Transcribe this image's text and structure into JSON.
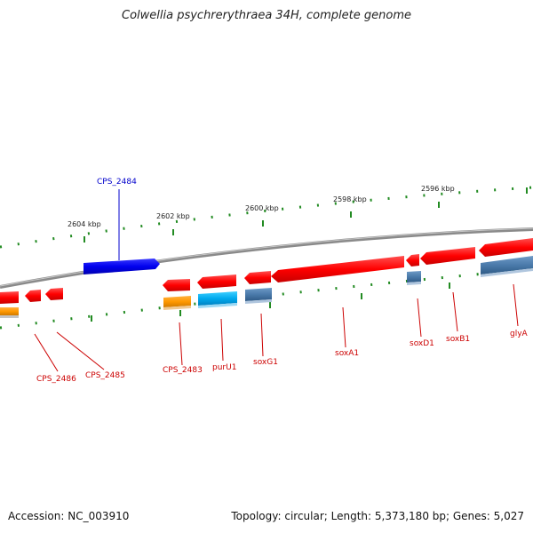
{
  "title": "Colwellia psychrerythraea 34H, complete genome",
  "footer": {
    "accession": "Accession: NC_003910",
    "summary": "Topology: circular; Length: 5,373,180 bp; Genes: 5,027"
  },
  "colors": {
    "backbone": "#8a8a8a",
    "forward_gene": "#ff0000",
    "reverse_gene": "#ff0000",
    "blue_gene": "#0000ee",
    "steelblue_gene": "#4a7aaa",
    "orange_gene": "#ff9900",
    "cyan_gene": "#00aaee",
    "label_red": "#cc0000",
    "label_blue": "#0000cc",
    "tick_green": "#228b22"
  },
  "scale_labels": [
    "2604 kbp",
    "2602 kbp",
    "2600 kbp",
    "2598 kbp",
    "2596 kbp"
  ],
  "gene_labels": [
    {
      "text": "CPS_2484",
      "color": "blue"
    },
    {
      "text": "CPS_2486",
      "color": "red"
    },
    {
      "text": "CPS_2485",
      "color": "red"
    },
    {
      "text": "CPS_2483",
      "color": "red"
    },
    {
      "text": "purU1",
      "color": "red"
    },
    {
      "text": "soxG1",
      "color": "red"
    },
    {
      "text": "soxA1",
      "color": "red"
    },
    {
      "text": "soxD1",
      "color": "red"
    },
    {
      "text": "soxB1",
      "color": "red"
    },
    {
      "text": "glyA",
      "color": "red"
    }
  ]
}
